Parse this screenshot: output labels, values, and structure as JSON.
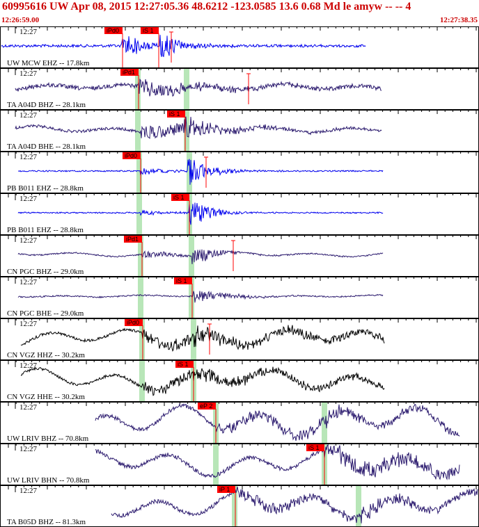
{
  "header": {
    "title": "60995616 UW Apr 08, 2015 12:27:05.36    48.6212 -123.0585 13.6 0.68 Md le amyw -- --     4",
    "start_time": "12:26:59.00",
    "end_time": "12:27:38.35"
  },
  "colors": {
    "header_text": "#cc0000",
    "pick_box": "#ff0000",
    "pick_window": "#b8e6b8",
    "trace_blue": "#0000ee",
    "trace_purple": "#2b1a6e",
    "trace_black": "#000000"
  },
  "panels": [
    {
      "tick_label": "12:27",
      "station_label": "UW MCW EHZ -- 17.8km",
      "color": "blue",
      "trace_start": 2,
      "trace_end": 525,
      "amp": 2,
      "onset": 175,
      "onset_amp": 24,
      "decay": 0.04,
      "burst2": 230,
      "burst2_amp": 20,
      "picks": [
        {
          "label": "iPd0",
          "pos": 176
        },
        {
          "label": "iS 1",
          "pos": 228
        }
      ],
      "windows": [],
      "coda": 246
    },
    {
      "tick_label": "12:27",
      "station_label": "TA A04D BHZ -- 28.1km",
      "color": "purple",
      "trace_start": 22,
      "trace_end": 548,
      "amp": 3,
      "wave_amp": 3,
      "onset": 199,
      "onset_amp": 14,
      "decay": 0.012,
      "picks": [
        {
          "label": "iPd1",
          "pos": 199
        }
      ],
      "windows": [
        198,
        268
      ],
      "coda": 357
    },
    {
      "tick_label": "12:27",
      "station_label": "TA A04D BHE -- 28.1km",
      "color": "purple",
      "trace_start": 22,
      "trace_end": 548,
      "amp": 2,
      "wave_amp": 3,
      "onset": 201,
      "onset_amp": 12,
      "decay": 0.008,
      "burst2": 265,
      "burst2_amp": 22,
      "picks": [
        {
          "label": "iS 1",
          "pos": 266
        }
      ],
      "windows": [
        198,
        268
      ],
      "coda": null
    },
    {
      "tick_label": "12:27",
      "station_label": "PB B011 EHZ -- 28.8km",
      "color": "blue",
      "trace_start": 26,
      "trace_end": 550,
      "amp": 1,
      "onset": 202,
      "onset_amp": 6,
      "decay": 0.03,
      "burst2": 270,
      "burst2_amp": 24,
      "picks": [
        {
          "label": "iPd0",
          "pos": 202
        }
      ],
      "windows": [
        200,
        272
      ],
      "coda": 296
    },
    {
      "tick_label": "12:27",
      "station_label": "PB B011 EHZ -- 28.8km",
      "color": "blue",
      "trace_start": 26,
      "trace_end": 550,
      "amp": 1,
      "onset": 202,
      "onset_amp": 4,
      "decay": 0.03,
      "burst2": 272,
      "burst2_amp": 22,
      "picks": [
        {
          "label": "iS 1",
          "pos": 272
        }
      ],
      "windows": [
        200,
        272
      ],
      "coda": null
    },
    {
      "tick_label": "12:27",
      "station_label": "CN PGC BHZ -- 29.0km",
      "color": "purple",
      "trace_start": 26,
      "trace_end": 550,
      "amp": 1,
      "wave_amp": 2,
      "onset": 204,
      "onset_amp": 6,
      "decay": 0.02,
      "burst2": 276,
      "burst2_amp": 16,
      "picks": [
        {
          "label": "iPd1",
          "pos": 204
        }
      ],
      "windows": [
        202,
        275
      ],
      "coda": 335
    },
    {
      "tick_label": "12:27",
      "station_label": "CN PGC BHE -- 29.0km",
      "color": "purple",
      "trace_start": 26,
      "trace_end": 550,
      "amp": 1,
      "wave_amp": 1,
      "onset": 276,
      "onset_amp": 10,
      "decay": 0.02,
      "picks": [
        {
          "label": "iS 1",
          "pos": 276
        }
      ],
      "windows": [
        202,
        275
      ],
      "coda": null
    },
    {
      "tick_label": "12:27",
      "station_label": "CN VGZ HHZ -- 30.2km",
      "color": "black",
      "trace_start": 30,
      "trace_end": 552,
      "amp": 2,
      "wave_amp": 8,
      "onset": 205,
      "onset_amp": 9,
      "decay": 0.002,
      "burst2": 278,
      "burst2_amp": 14,
      "picks": [
        {
          "label": "iPd0",
          "pos": 205
        }
      ],
      "windows": [
        204,
        278
      ],
      "coda": 301
    },
    {
      "tick_label": "12:27",
      "station_label": "CN VGZ HHE -- 30.2km",
      "color": "black",
      "trace_start": 30,
      "trace_end": 552,
      "amp": 2,
      "wave_amp": 10,
      "onset": 205,
      "onset_amp": 8,
      "decay": 0.002,
      "burst2": 278,
      "burst2_amp": 14,
      "picks": [
        {
          "label": "iS 1",
          "pos": 278
        }
      ],
      "windows": [
        204,
        278
      ],
      "coda": null
    },
    {
      "tick_label": "12:27",
      "station_label": "UW LRIV BHZ -- 70.8km",
      "color": "purple",
      "trace_start": 137,
      "trace_end": 660,
      "amp": 3,
      "wave_amp": 14,
      "onset": 309,
      "onset_amp": 8,
      "decay": 0.002,
      "burst2": 466,
      "burst2_amp": 10,
      "picks": [
        {
          "label": "eP 2",
          "pos": 310
        }
      ],
      "windows": [
        310,
        466
      ],
      "coda": null
    },
    {
      "tick_label": "12:27",
      "station_label": "UW LRIV BHN -- 70.8km",
      "color": "purple",
      "trace_start": 137,
      "trace_end": 660,
      "amp": 3,
      "wave_amp": 12,
      "onset": 466,
      "onset_amp": 12,
      "decay": 0.002,
      "picks": [
        {
          "label": "iS 1",
          "pos": 466
        }
      ],
      "windows": [
        310,
        466
      ],
      "coda": null
    },
    {
      "tick_label": "12:27",
      "station_label": "TA B05D BHZ -- 81.3km",
      "color": "purple",
      "trace_start": 160,
      "trace_end": 686,
      "amp": 3,
      "wave_amp": 12,
      "onset": 338,
      "onset_amp": 8,
      "decay": 0.002,
      "burst2": 515,
      "burst2_amp": 12,
      "picks": [
        {
          "label": "iP 1",
          "pos": 338
        }
      ],
      "windows": [
        337,
        515
      ],
      "coda": null
    }
  ]
}
